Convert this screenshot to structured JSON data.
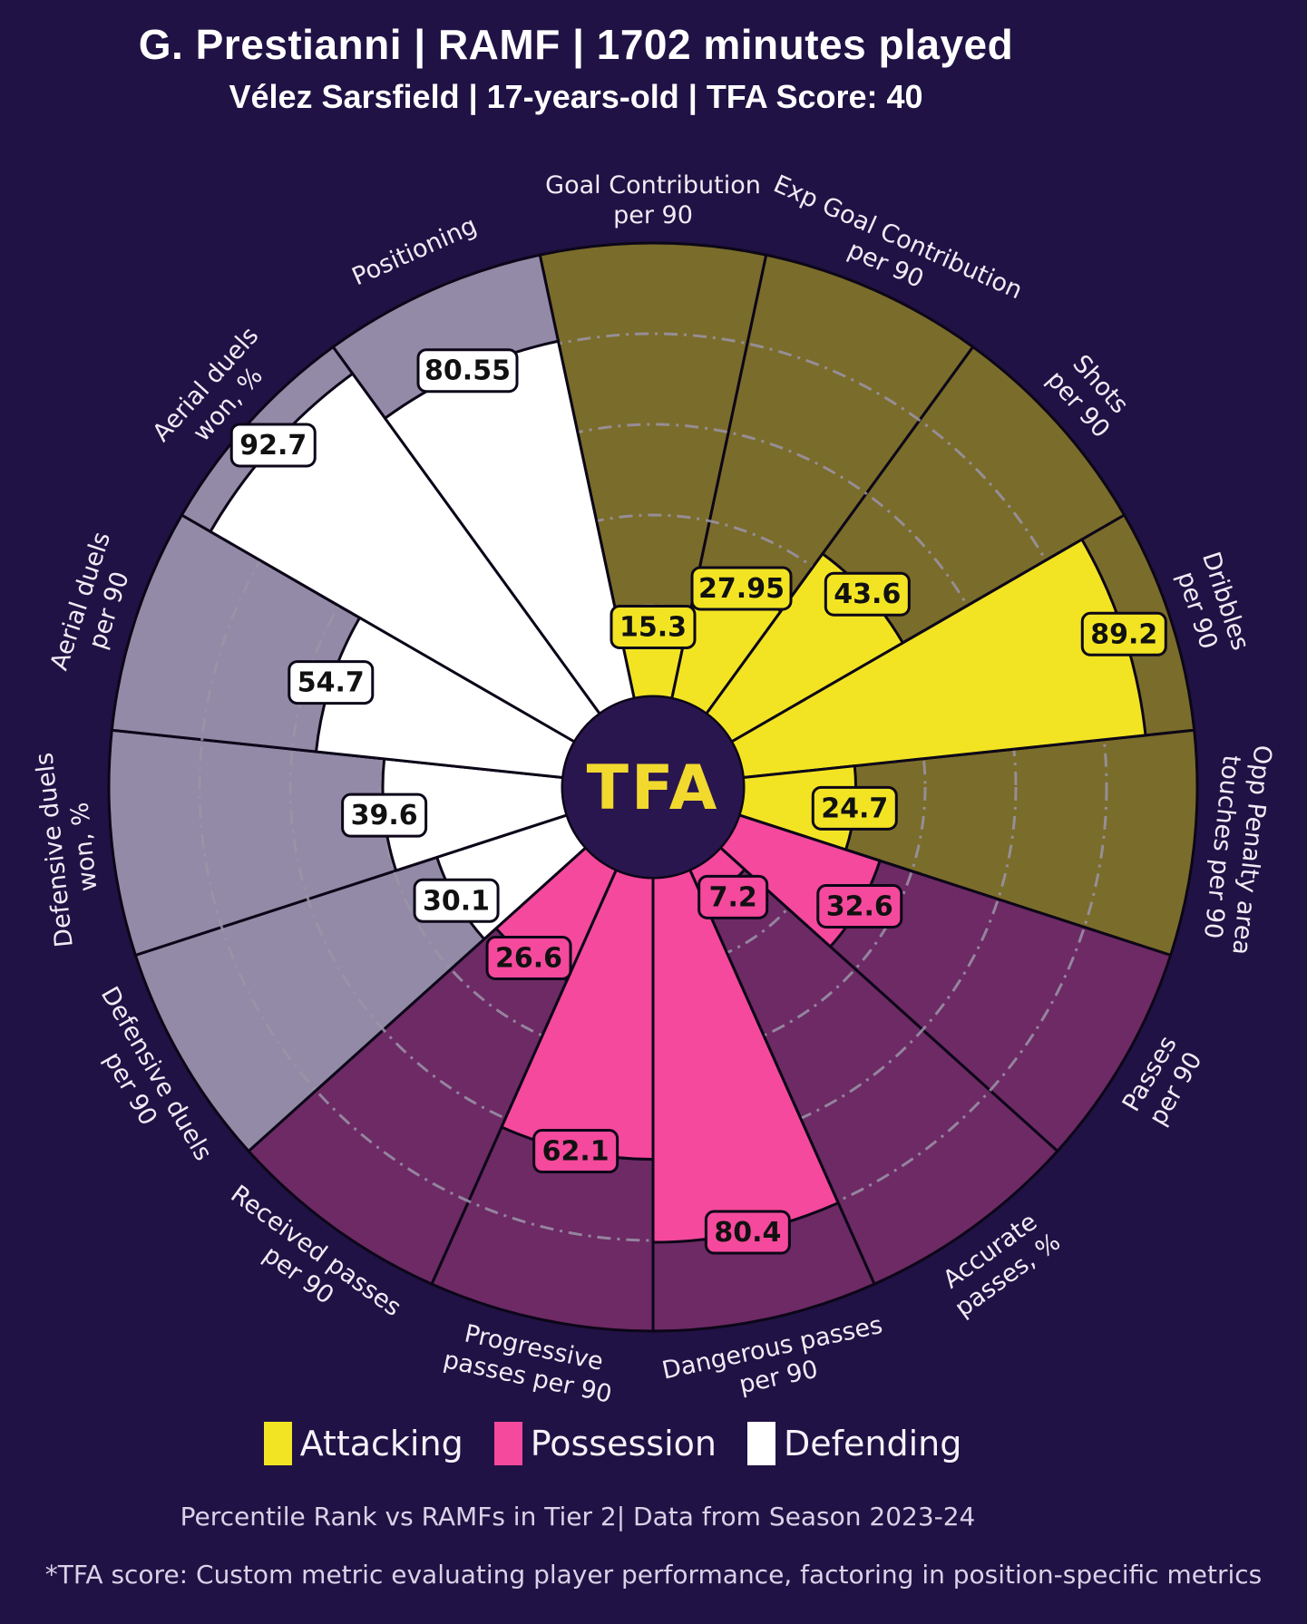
{
  "header": {
    "title": "G. Prestianni | RAMF | 1702 minutes played",
    "subtitle": "Vélez Sarsfield | 17-years-old | TFA Score: 40"
  },
  "chart_data": {
    "type": "pie",
    "variant": "percentile-pizza",
    "title": "G. Prestianni | RAMF | 1702 minutes played",
    "subtitle": "Vélez Sarsfield | 17-years-old | TFA Score: 40",
    "value_range": [
      0,
      100
    ],
    "gridlines": [
      20,
      40,
      60,
      80
    ],
    "start_angle_deg": -12,
    "slice_angle_deg": 24,
    "center_logo_text": "TFA",
    "legend_position": "bottom",
    "groups": {
      "attacking": {
        "label": "Attacking",
        "fill": "#f2e423",
        "track": "#7a6c2a"
      },
      "possession": {
        "label": "Possession",
        "fill": "#f4499c",
        "track": "#6d2a64"
      },
      "defending": {
        "label": "Defending",
        "fill": "#ffffff",
        "track": "#928aa6"
      }
    },
    "slices": [
      {
        "param": "Goal Contribution per 90",
        "lines": [
          "Goal Contribution",
          "per 90"
        ],
        "value": 15.3,
        "group": "attacking"
      },
      {
        "param": "Exp Goal Contribution per 90",
        "lines": [
          "Exp Goal Contribution",
          "per 90"
        ],
        "value": 27.95,
        "group": "attacking"
      },
      {
        "param": "Shots per 90",
        "lines": [
          "Shots",
          "per 90"
        ],
        "value": 43.6,
        "group": "attacking"
      },
      {
        "param": "Dribbles per 90",
        "lines": [
          "Dribbles",
          "per 90"
        ],
        "value": 89.2,
        "group": "attacking"
      },
      {
        "param": "Opp Penalty area touches per 90",
        "lines": [
          "Opp Penalty area",
          "touches per 90"
        ],
        "value": 24.7,
        "group": "attacking"
      },
      {
        "param": "Passes per 90",
        "lines": [
          "Passes",
          "per 90"
        ],
        "value": 32.6,
        "group": "possession"
      },
      {
        "param": "Accurate passes, %",
        "lines": [
          "Accurate",
          "passes, %"
        ],
        "value": 7.2,
        "group": "possession"
      },
      {
        "param": "Dangerous passes per 90",
        "lines": [
          "Dangerous passes",
          "per 90"
        ],
        "value": 80.4,
        "group": "possession"
      },
      {
        "param": "Progressive passes per 90",
        "lines": [
          "Progressive",
          "passes per 90"
        ],
        "value": 62.1,
        "group": "possession"
      },
      {
        "param": "Received passes per 90",
        "lines": [
          "Received passes",
          "per 90"
        ],
        "value": 26.6,
        "group": "possession"
      },
      {
        "param": "Defensive duels per 90",
        "lines": [
          "Defensive duels",
          "per 90"
        ],
        "value": 30.1,
        "group": "defending"
      },
      {
        "param": "Defensive duels won, %",
        "lines": [
          "Defensive duels",
          "won, %"
        ],
        "value": 39.6,
        "group": "defending"
      },
      {
        "param": "Aerial duels per 90",
        "lines": [
          "Aerial duels",
          "per 90"
        ],
        "value": 54.7,
        "group": "defending"
      },
      {
        "param": "Aerial duels won, %",
        "lines": [
          "Aerial duels",
          "won, %"
        ],
        "value": 92.7,
        "group": "defending"
      },
      {
        "param": "Positioning",
        "lines": [
          "Positioning"
        ],
        "value": 80.55,
        "group": "defending"
      }
    ]
  },
  "legend": {
    "items": [
      {
        "label": "Attacking",
        "group": "attacking"
      },
      {
        "label": "Possession",
        "group": "possession"
      },
      {
        "label": "Defending",
        "group": "defending"
      }
    ]
  },
  "caption": "Percentile Rank vs RAMFs in Tier 2| Data from Season 2023-24",
  "footnote": "*TFA score: Custom metric evaluating player performance, factoring in position-specific metrics",
  "colors": {
    "background": "#201244",
    "attacking": "#f2e423",
    "attacking_track": "#7a6c2a",
    "possession": "#f4499c",
    "possession_track": "#6d2a64",
    "defending": "#ffffff",
    "defending_track": "#928aa6",
    "slice_border": "#0c0618",
    "grid": "#9b94a8",
    "value_text": "#111111",
    "label_text": "#f0ebf5",
    "caption_text": "#d9d2e8",
    "logo_bg": "#2a164f",
    "logo_text": "#f2d92e",
    "title_text": "#ffffff"
  }
}
